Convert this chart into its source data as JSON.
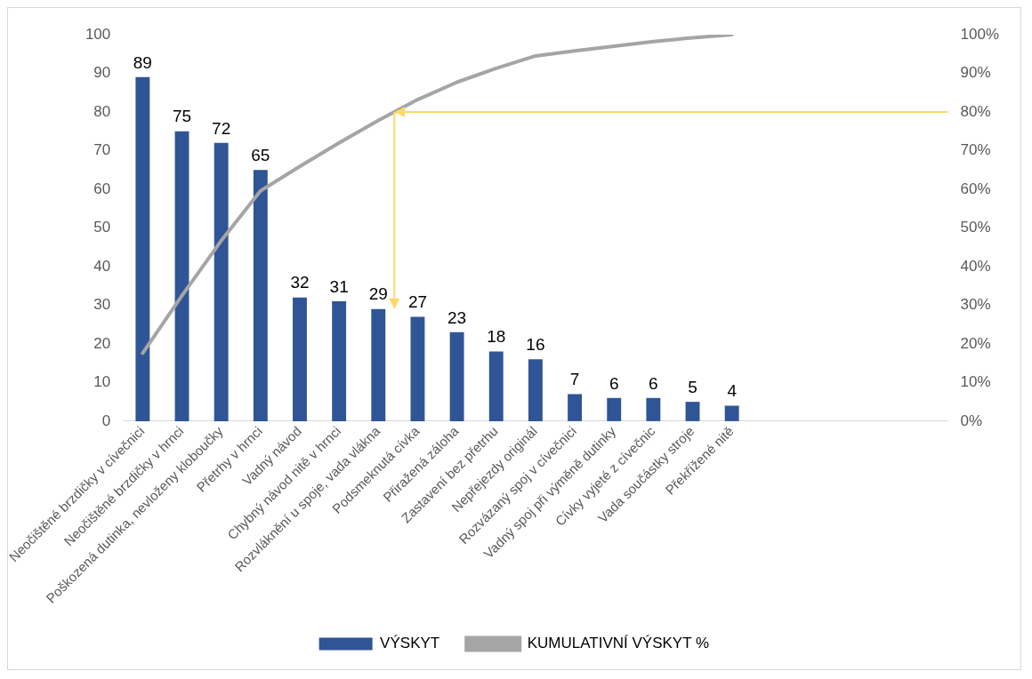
{
  "chart_data": {
    "type": "bar",
    "categories": [
      "Neočištěné brzdičky v cívečnici",
      "Neočištěné brzdičky v hrnci",
      "Poškozená dutinka, nevloženy kloboučky",
      "Přetrhy v hrnci",
      "Vadný návod",
      "Chybný návod nitě v hrnci",
      "Rozvláknění u spoje, vada vlákna",
      "Podsmeknutá cívka",
      "Přiražená záloha",
      "Zastavení bez přetrhu",
      "Nepřejezdy originál",
      "Rozvázaný spoj v cívečnici",
      "Vadný spoj při výměně dutinky",
      "Cívky vyjeté z cívečnic",
      "Vada součástky stroje",
      "Překřížené nitě",
      null,
      null,
      null,
      null,
      null
    ],
    "series": [
      {
        "name": "VÝSKYT",
        "color": "#2f5597",
        "values": [
          89,
          75,
          72,
          65,
          32,
          31,
          29,
          27,
          23,
          18,
          16,
          7,
          6,
          6,
          5,
          4,
          null,
          null,
          null,
          null,
          null
        ],
        "value_labels": [
          "89",
          "75",
          "72",
          "65",
          "32",
          "31",
          "29",
          "27",
          "23",
          "18",
          "16",
          "7",
          "6",
          "6",
          "5",
          "4",
          null,
          null,
          null,
          null,
          null
        ]
      },
      {
        "name": "KUMULATIVNÍ VÝSKYT %",
        "type": "line",
        "axis": "y2",
        "color": "#a5a5a5",
        "values": [
          17.6,
          32.5,
          46.7,
          59.6,
          65.9,
          72.0,
          77.8,
          83.2,
          87.7,
          91.3,
          94.5,
          95.8,
          97.0,
          98.2,
          99.2,
          100,
          null,
          null,
          null,
          null,
          null
        ]
      }
    ],
    "ylim": [
      0,
      100
    ],
    "yticks": [
      0,
      10,
      20,
      30,
      40,
      50,
      60,
      70,
      80,
      90,
      100
    ],
    "y2lim": [
      0,
      100
    ],
    "y2ticks": [
      {
        "value": 0,
        "label": "0%"
      },
      {
        "value": 10,
        "label": "10%"
      },
      {
        "value": 20,
        "label": "20%"
      },
      {
        "value": 30,
        "label": "30%"
      },
      {
        "value": 40,
        "label": "40%"
      },
      {
        "value": 50,
        "label": "50%"
      },
      {
        "value": 60,
        "label": "60%"
      },
      {
        "value": 70,
        "label": "70%"
      },
      {
        "value": 80,
        "label": "80%"
      },
      {
        "value": 90,
        "label": "90%"
      },
      {
        "value": 100,
        "label": "100%"
      }
    ],
    "ref_lines": [
      {
        "axis": "y2",
        "value": 80,
        "color": "#ffd966"
      }
    ],
    "grid": false,
    "legend": "bottom",
    "marker": "none",
    "line_style": "solid"
  }
}
